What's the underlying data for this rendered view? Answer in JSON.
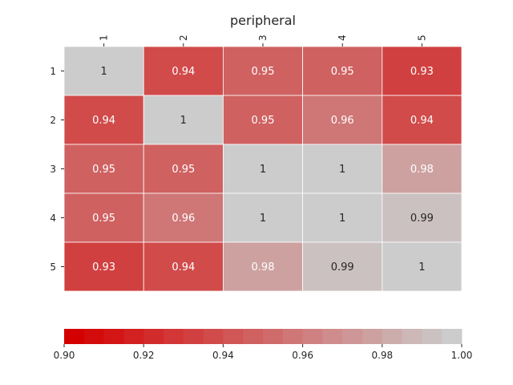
{
  "chart_data": {
    "type": "heatmap",
    "title": "peripheral",
    "x_tick_labels": [
      "1",
      "2",
      "3",
      "4",
      "5"
    ],
    "y_tick_labels": [
      "1",
      "2",
      "3",
      "4",
      "5"
    ],
    "x_tick_position": "top",
    "values": [
      [
        1.0,
        0.94,
        0.95,
        0.95,
        0.93
      ],
      [
        0.94,
        1.0,
        0.95,
        0.96,
        0.94
      ],
      [
        0.95,
        0.95,
        1.0,
        1.0,
        0.98
      ],
      [
        0.95,
        0.96,
        1.0,
        1.0,
        0.99
      ],
      [
        0.93,
        0.94,
        0.98,
        0.99,
        1.0
      ]
    ],
    "cell_labels": [
      [
        "1",
        "0.94",
        "0.95",
        "0.95",
        "0.93"
      ],
      [
        "0.94",
        "1",
        "0.95",
        "0.96",
        "0.94"
      ],
      [
        "0.95",
        "0.95",
        "1",
        "1",
        "0.98"
      ],
      [
        "0.95",
        "0.96",
        "1",
        "1",
        "0.99"
      ],
      [
        "0.93",
        "0.94",
        "0.98",
        "0.99",
        "1"
      ]
    ],
    "color_range": [
      0.9,
      1.0
    ],
    "colormap": {
      "low_color": "#d40000",
      "high_color": "#cccccc",
      "steps": 20
    },
    "colorbar": {
      "orientation": "horizontal",
      "placement": "bottom",
      "ticks": [
        0.9,
        0.92,
        0.94,
        0.96,
        0.98,
        1.0
      ],
      "tick_labels": [
        "0.90",
        "0.92",
        "0.94",
        "0.96",
        "0.98",
        "1.00"
      ]
    },
    "grid_lines": "white"
  }
}
